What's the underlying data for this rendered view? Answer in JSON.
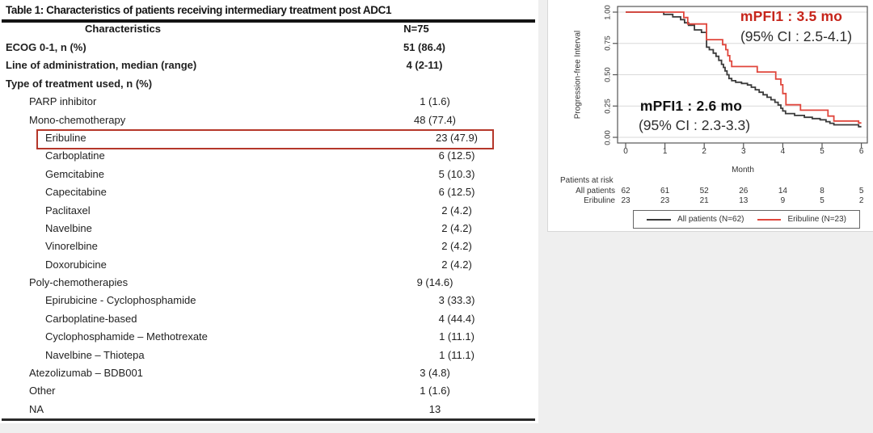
{
  "page": {
    "background": "#efefef"
  },
  "table": {
    "title": "Table 1: Characteristics of patients receiving intermediary treatment post ADC1",
    "header": {
      "characteristics": "Characteristics",
      "n": "N=75"
    },
    "highlight_color": "#b5372a",
    "rows": [
      {
        "label": "ECOG 0-1, n (%)",
        "value": "51 (86.4)",
        "level": 0,
        "bold": true
      },
      {
        "label": "Line of administration, median (range)",
        "value": "4 (2-11)",
        "level": 0,
        "bold": true
      },
      {
        "label": "Type of treatment used, n (%)",
        "value": "",
        "level": 0,
        "bold": true
      },
      {
        "label": "PARP inhibitor",
        "value": "1 (1.6)",
        "level": 1,
        "bold": false
      },
      {
        "label": "Mono-chemotherapy",
        "value": "48 (77.4)",
        "level": 1,
        "bold": false
      },
      {
        "label": "Eribuline",
        "value": "23 (47.9)",
        "level": 2,
        "bold": false,
        "highlighted": true
      },
      {
        "label": "Carboplatine",
        "value": "6 (12.5)",
        "level": 2,
        "bold": false
      },
      {
        "label": "Gemcitabine",
        "value": "5 (10.3)",
        "level": 2,
        "bold": false
      },
      {
        "label": "Capecitabine",
        "value": "6 (12.5)",
        "level": 2,
        "bold": false
      },
      {
        "label": "Paclitaxel",
        "value": "2 (4.2)",
        "level": 2,
        "bold": false
      },
      {
        "label": "Navelbine",
        "value": "2 (4.2)",
        "level": 2,
        "bold": false
      },
      {
        "label": "Vinorelbine",
        "value": "2 (4.2)",
        "level": 2,
        "bold": false
      },
      {
        "label": "Doxorubicine",
        "value": "2 (4.2)",
        "level": 2,
        "bold": false
      },
      {
        "label": "Poly-chemotherapies",
        "value": "9 (14.6)",
        "level": 1,
        "bold": false
      },
      {
        "label": "Epirubicine - Cyclophosphamide",
        "value": "3 (33.3)",
        "level": 2,
        "bold": false
      },
      {
        "label": "Carboplatine-based",
        "value": "4 (44.4)",
        "level": 2,
        "bold": false
      },
      {
        "label": "Cyclophosphamide – Methotrexate",
        "value": "1 (11.1)",
        "level": 2,
        "bold": false
      },
      {
        "label": "Navelbine – Thiotepa",
        "value": "1 (11.1)",
        "level": 2,
        "bold": false
      },
      {
        "label": "Atezolizumab – BDB001",
        "value": "3 (4.8)",
        "level": 1,
        "bold": false
      },
      {
        "label": "Other",
        "value": "1 (1.6)",
        "level": 1,
        "bold": false
      },
      {
        "label": "NA",
        "value": "13",
        "level": 1,
        "bold": false
      }
    ]
  },
  "chart_data": {
    "type": "line",
    "subtype": "kaplan-meier-step",
    "xlabel": "Month",
    "ylabel": "Progression-free Interval",
    "xlim": [
      0,
      6
    ],
    "ylim": [
      0.0,
      1.0
    ],
    "xticks": [
      "0",
      "1",
      "2",
      "3",
      "4",
      "5",
      "6"
    ],
    "yticks": [
      "0.00",
      "0.25",
      "0.50",
      "0.75",
      "1.00"
    ],
    "grid": "horizontal",
    "series": [
      {
        "name": "All patients (N=62)",
        "color": "#3a3a3a",
        "points": [
          [
            0,
            1
          ],
          [
            0.97,
            1
          ],
          [
            0.97,
            0.982
          ],
          [
            1.2,
            0.982
          ],
          [
            1.2,
            0.962
          ],
          [
            1.4,
            0.962
          ],
          [
            1.4,
            0.94
          ],
          [
            1.5,
            0.94
          ],
          [
            1.5,
            0.915
          ],
          [
            1.6,
            0.915
          ],
          [
            1.6,
            0.895
          ],
          [
            1.75,
            0.895
          ],
          [
            1.75,
            0.858
          ],
          [
            1.93,
            0.858
          ],
          [
            1.93,
            0.838
          ],
          [
            2.06,
            0.838
          ],
          [
            2.06,
            0.72
          ],
          [
            2.13,
            0.72
          ],
          [
            2.13,
            0.7
          ],
          [
            2.23,
            0.7
          ],
          [
            2.23,
            0.672
          ],
          [
            2.3,
            0.672
          ],
          [
            2.3,
            0.647
          ],
          [
            2.37,
            0.647
          ],
          [
            2.37,
            0.615
          ],
          [
            2.44,
            0.615
          ],
          [
            2.44,
            0.583
          ],
          [
            2.49,
            0.583
          ],
          [
            2.49,
            0.558
          ],
          [
            2.53,
            0.558
          ],
          [
            2.53,
            0.53
          ],
          [
            2.58,
            0.53
          ],
          [
            2.58,
            0.5
          ],
          [
            2.63,
            0.5
          ],
          [
            2.63,
            0.47
          ],
          [
            2.7,
            0.47
          ],
          [
            2.7,
            0.452
          ],
          [
            2.8,
            0.452
          ],
          [
            2.8,
            0.44
          ],
          [
            2.95,
            0.44
          ],
          [
            2.95,
            0.43
          ],
          [
            3.1,
            0.43
          ],
          [
            3.1,
            0.418
          ],
          [
            3.2,
            0.418
          ],
          [
            3.2,
            0.4
          ],
          [
            3.3,
            0.4
          ],
          [
            3.3,
            0.38
          ],
          [
            3.4,
            0.38
          ],
          [
            3.4,
            0.36
          ],
          [
            3.5,
            0.36
          ],
          [
            3.5,
            0.34
          ],
          [
            3.6,
            0.34
          ],
          [
            3.6,
            0.32
          ],
          [
            3.7,
            0.32
          ],
          [
            3.7,
            0.3
          ],
          [
            3.8,
            0.3
          ],
          [
            3.8,
            0.28
          ],
          [
            3.88,
            0.28
          ],
          [
            3.88,
            0.258
          ],
          [
            3.95,
            0.258
          ],
          [
            3.95,
            0.232
          ],
          [
            4.0,
            0.232
          ],
          [
            4.0,
            0.21
          ],
          [
            4.07,
            0.21
          ],
          [
            4.07,
            0.19
          ],
          [
            4.3,
            0.19
          ],
          [
            4.3,
            0.175
          ],
          [
            4.55,
            0.175
          ],
          [
            4.55,
            0.16
          ],
          [
            4.75,
            0.16
          ],
          [
            4.75,
            0.15
          ],
          [
            4.95,
            0.15
          ],
          [
            4.95,
            0.14
          ],
          [
            5.1,
            0.14
          ],
          [
            5.1,
            0.125
          ],
          [
            5.2,
            0.125
          ],
          [
            5.2,
            0.112
          ],
          [
            5.3,
            0.112
          ],
          [
            5.3,
            0.1
          ],
          [
            5.93,
            0.1
          ],
          [
            5.93,
            0.085
          ],
          [
            6,
            0.085
          ]
        ]
      },
      {
        "name": "Eribuline (N=23)",
        "color": "#e0463c",
        "points": [
          [
            0,
            1
          ],
          [
            1.48,
            1
          ],
          [
            1.48,
            0.957
          ],
          [
            1.58,
            0.957
          ],
          [
            1.58,
            0.905
          ],
          [
            2.06,
            0.905
          ],
          [
            2.06,
            0.78
          ],
          [
            2.47,
            0.78
          ],
          [
            2.47,
            0.74
          ],
          [
            2.55,
            0.74
          ],
          [
            2.55,
            0.7
          ],
          [
            2.6,
            0.7
          ],
          [
            2.6,
            0.652
          ],
          [
            2.65,
            0.652
          ],
          [
            2.65,
            0.609
          ],
          [
            2.7,
            0.609
          ],
          [
            2.7,
            0.565
          ],
          [
            3.35,
            0.565
          ],
          [
            3.35,
            0.522
          ],
          [
            3.82,
            0.522
          ],
          [
            3.82,
            0.465
          ],
          [
            3.95,
            0.465
          ],
          [
            3.95,
            0.42
          ],
          [
            4.0,
            0.42
          ],
          [
            4.0,
            0.35
          ],
          [
            4.08,
            0.35
          ],
          [
            4.08,
            0.26
          ],
          [
            4.45,
            0.26
          ],
          [
            4.45,
            0.217
          ],
          [
            5.15,
            0.217
          ],
          [
            5.15,
            0.17
          ],
          [
            5.3,
            0.17
          ],
          [
            5.3,
            0.13
          ],
          [
            5.93,
            0.13
          ],
          [
            5.93,
            0.115
          ],
          [
            6,
            0.115
          ]
        ]
      }
    ],
    "annotations": [
      {
        "text": "mPFI1 : 3.5 mo",
        "color": "#c6251b",
        "bold": true
      },
      {
        "text": "(95% CI : 2.5-4.1)",
        "color": "#2e2e2e",
        "bold": false
      },
      {
        "text": "mPFI1 : 2.6 mo",
        "color": "#111111",
        "bold": true
      },
      {
        "text": "(95% CI : 2.3-3.3)",
        "color": "#2e2e2e",
        "bold": false
      }
    ],
    "risk_table": {
      "title": "Patients at risk",
      "timepoints": [
        0,
        1,
        2,
        3,
        4,
        5,
        6
      ],
      "rows": [
        {
          "label": "All patients",
          "values": [
            "62",
            "61",
            "52",
            "26",
            "14",
            "8",
            "5"
          ]
        },
        {
          "label": "Eribuline",
          "values": [
            "23",
            "23",
            "21",
            "13",
            "9",
            "5",
            "2"
          ]
        }
      ]
    },
    "legend": [
      {
        "label": "All patients (N=62)",
        "color": "#3a3a3a"
      },
      {
        "label": "Eribuline (N=23)",
        "color": "#e0463c"
      }
    ],
    "legend_position": "bottom"
  }
}
